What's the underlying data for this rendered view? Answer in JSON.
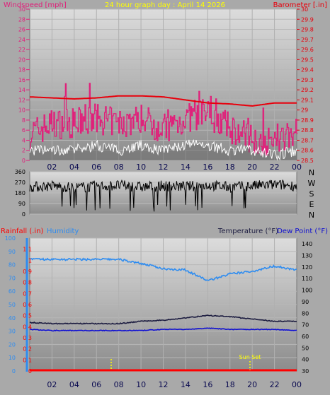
{
  "top_chart": {
    "left_title": "Windspeed [mph]",
    "center_title": "24 hour graph day : April 14 2026",
    "right_title": "Barometer [.in]",
    "left_ticks": [
      "0",
      "2",
      "4",
      "6",
      "8",
      "10",
      "12",
      "14",
      "16",
      "18",
      "20",
      "22",
      "24",
      "26",
      "28",
      "30"
    ],
    "right_ticks": [
      "28.5",
      "28.6",
      "28.7",
      "28.8",
      "28.9",
      "29",
      "29.1",
      "29.2",
      "29.3",
      "29.4",
      "29.5",
      "29.6",
      "29.7",
      "29.8",
      "29.9",
      "30"
    ],
    "x_ticks": [
      "02",
      "04",
      "06",
      "08",
      "10",
      "12",
      "14",
      "16",
      "18",
      "20",
      "22",
      "00"
    ]
  },
  "direction_chart": {
    "left_ticks": [
      "360",
      "270",
      "180",
      "90",
      "0"
    ],
    "compass_labels": [
      "N",
      "W",
      "S",
      "E",
      "N"
    ]
  },
  "bottom_chart": {
    "rainfall_label": "Rainfall (.in)",
    "humidity_label": "Humidity",
    "temperature_label": "Temperature (°F)",
    "dewpoint_label": "Dew Point (°F)",
    "humidity_ticks": [
      "0",
      "10",
      "20",
      "30",
      "40",
      "50",
      "60",
      "70",
      "80",
      "90",
      "100"
    ],
    "rain_ticks": [
      "0",
      "0.1",
      "0.2",
      "0.3",
      "0.4",
      "0.5",
      "0.6",
      "0.7",
      "0.8",
      "0.9",
      "1",
      "1.1"
    ],
    "temp_ticks": [
      "30",
      "40",
      "50",
      "60",
      "70",
      "80",
      "90",
      "100",
      "110",
      "120",
      "130",
      "140"
    ],
    "x_ticks": [
      "02",
      "04",
      "06",
      "08",
      "10",
      "12",
      "14",
      "16",
      "18",
      "20",
      "22",
      "00"
    ],
    "sunset_label": "Sun Set"
  },
  "colors": {
    "wind_avg": "#ffffff",
    "wind_gust": "#e0207a",
    "barometer": "#e8000c",
    "direction": "#000000",
    "humidity": "#2e8cf0",
    "temperature": "#1c1c40",
    "dewpoint": "#1010d0",
    "rainfall": "#ff0000",
    "left_title": "#e0207a",
    "center_title": "#ffff00",
    "right_title": "#e8000c",
    "humidity_label": "#2e8cf0",
    "temperature_label": "#1c1c40",
    "dewpoint_label": "#1010d0",
    "sunset": "#ffff00"
  },
  "chart_data": [
    {
      "type": "line",
      "title": "24 hour graph day : April 14 2026",
      "x": [
        "00",
        "02",
        "04",
        "06",
        "08",
        "10",
        "12",
        "14",
        "16",
        "18",
        "20",
        "22",
        "00"
      ],
      "ylabel": "Windspeed [mph]",
      "ylim": [
        0,
        30
      ],
      "y2label": "Barometer [.in]",
      "y2lim": [
        28.5,
        30
      ],
      "series": [
        {
          "name": "Windspeed [mph]",
          "axis": "left",
          "values": [
            2,
            2,
            2,
            3,
            2,
            3,
            2,
            3,
            3,
            2,
            2,
            1,
            2
          ]
        },
        {
          "name": "Gust",
          "axis": "left",
          "values": [
            5,
            7,
            7,
            8,
            7,
            8,
            6,
            8,
            9,
            6,
            4,
            3,
            6
          ]
        },
        {
          "name": "Barometer [.in]",
          "axis": "right",
          "values": [
            29.13,
            29.12,
            29.11,
            29.12,
            29.14,
            29.14,
            29.13,
            29.1,
            29.07,
            29.06,
            29.04,
            29.07,
            29.07
          ]
        }
      ]
    },
    {
      "type": "line",
      "title": "",
      "x": [
        "00",
        "02",
        "04",
        "06",
        "08",
        "10",
        "12",
        "14",
        "16",
        "18",
        "20",
        "22",
        "00"
      ],
      "ylabel": "",
      "ylim": [
        0,
        360
      ],
      "compass": [
        "N",
        "W",
        "S",
        "E",
        "N"
      ],
      "series": [
        {
          "name": "Wind direction",
          "values": [
            230,
            240,
            225,
            235,
            245,
            230,
            240,
            235,
            245,
            230,
            240,
            250,
            240
          ]
        }
      ]
    },
    {
      "type": "line",
      "title": "",
      "x": [
        "00",
        "02",
        "04",
        "06",
        "08",
        "10",
        "12",
        "14",
        "16",
        "18",
        "20",
        "22",
        "00"
      ],
      "ylabel": "Humidity",
      "ylim": [
        0,
        100
      ],
      "y2label": "Temperature (°F) / Dew Point (°F)",
      "y2lim": [
        30,
        145
      ],
      "y3label": "Rainfall (.in)",
      "y3lim": [
        0,
        1.2
      ],
      "series": [
        {
          "name": "Humidity",
          "axis": "humidity",
          "values": [
            84,
            84,
            84,
            84,
            84,
            81,
            77,
            76,
            68,
            73,
            75,
            79,
            76
          ]
        },
        {
          "name": "Temperature (°F)",
          "axis": "temperature",
          "values": [
            72,
            71,
            71,
            71,
            71,
            73,
            74,
            76,
            78,
            77,
            75,
            73,
            73
          ]
        },
        {
          "name": "Dew Point (°F)",
          "axis": "temperature",
          "values": [
            66,
            65,
            65,
            65,
            65,
            65,
            66,
            66,
            67,
            66,
            66,
            66,
            65
          ]
        },
        {
          "name": "Rainfall (.in)",
          "axis": "rain",
          "values": [
            0,
            0,
            0,
            0,
            0,
            0,
            0,
            0,
            0,
            0,
            0,
            0,
            0
          ]
        }
      ],
      "annotations": [
        {
          "label": "Sun Set",
          "x": "20"
        }
      ]
    }
  ]
}
